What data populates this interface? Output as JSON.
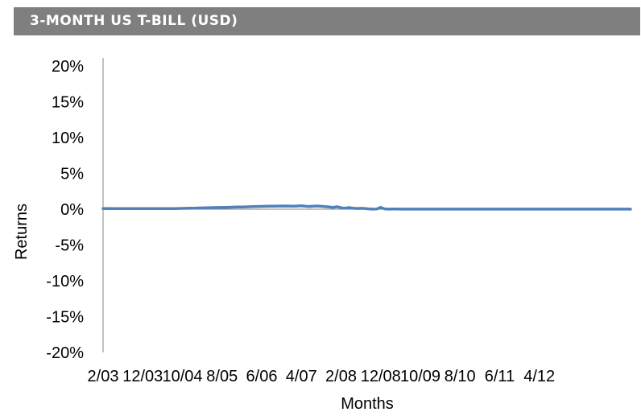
{
  "header": {
    "title": "3-MONTH US T-BILL (USD)",
    "background": "#7f7f7f"
  },
  "chart_data": {
    "type": "line",
    "title": "3-MONTH US T-BILL (USD)",
    "xlabel": "Months",
    "ylabel": "Returns",
    "ylim": [
      -20,
      20
    ],
    "yticks": [
      20,
      15,
      10,
      5,
      0,
      -5,
      -10,
      -15,
      -20
    ],
    "ytick_labels": [
      "20%",
      "15%",
      "10%",
      "5%",
      "0%",
      "-5%",
      "-10%",
      "-15%",
      "-20%"
    ],
    "xtick_labels": [
      "2/03",
      "12/03",
      "10/04",
      "8/05",
      "6/06",
      "4/07",
      "2/08",
      "12/08",
      "10/09",
      "8/10",
      "6/11",
      "4/12"
    ],
    "grid": false,
    "series": [
      {
        "color": "#4f81bd",
        "values": [
          0.09,
          0.1,
          0.09,
          0.08,
          0.09,
          0.08,
          0.08,
          0.08,
          0.08,
          0.08,
          0.08,
          0.08,
          0.08,
          0.08,
          0.08,
          0.08,
          0.08,
          0.09,
          0.09,
          0.1,
          0.11,
          0.12,
          0.13,
          0.15,
          0.17,
          0.18,
          0.2,
          0.21,
          0.22,
          0.24,
          0.25,
          0.26,
          0.27,
          0.29,
          0.3,
          0.31,
          0.33,
          0.35,
          0.37,
          0.38,
          0.39,
          0.4,
          0.42,
          0.43,
          0.44,
          0.44,
          0.45,
          0.44,
          0.43,
          0.45,
          0.47,
          0.42,
          0.38,
          0.42,
          0.45,
          0.4,
          0.36,
          0.3,
          0.25,
          0.35,
          0.2,
          0.15,
          0.22,
          0.15,
          0.1,
          0.12,
          0.1,
          0.05,
          0.01,
          0.03,
          0.25,
          0.05,
          0.01,
          0.02,
          0.02,
          0.01,
          0.01,
          0.01,
          0.01,
          0.01,
          0.01,
          0.01,
          0.01,
          0.01,
          0.01,
          0.01,
          0.01,
          0.01,
          0.01,
          0.01,
          0.01,
          0.01,
          0.01,
          0.01,
          0.01,
          0.01,
          0.01,
          0.01,
          0.01,
          0.01,
          0.01,
          0.01,
          0.01,
          0.01,
          0.01,
          0.01,
          0.01,
          0.01,
          0.01,
          0.01,
          0.01,
          0.01,
          0.01,
          0.01,
          0.01,
          0.01,
          0.01,
          0.01,
          0.01,
          0.01,
          0.01,
          0.01,
          0.01,
          0.01,
          0.01,
          0.01,
          0.01,
          0.01,
          0.01,
          0.01,
          0.01,
          0.01,
          0.01,
          0.01
        ]
      }
    ]
  }
}
